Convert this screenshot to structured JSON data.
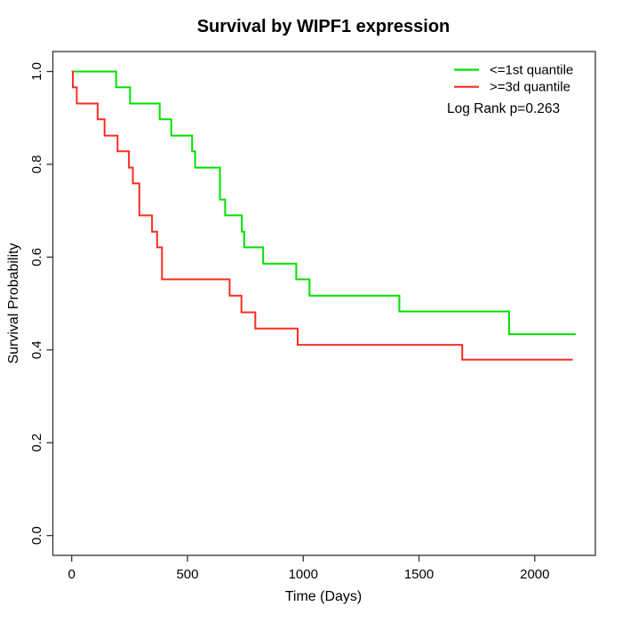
{
  "chart_data": {
    "type": "line",
    "variant": "kaplan-meier-step",
    "title": "Survival by WIPF1 expression",
    "xlabel": "Time (Days)",
    "ylabel": "Survival Probability",
    "x_ticks": [
      "0",
      "500",
      "1000",
      "1500",
      "2000"
    ],
    "y_ticks": [
      "0.0",
      "0.2",
      "0.4",
      "0.6",
      "0.8",
      "1.0"
    ],
    "xlim": [
      0,
      2260
    ],
    "ylim": [
      0,
      1.04
    ],
    "grid": false,
    "legend_position": "top-right",
    "annotation": "Log Rank p=0.263",
    "series": [
      {
        "name": "<=1st quantile",
        "color": "#00e000",
        "points": [
          [
            0,
            1.0
          ],
          [
            192,
            0.966
          ],
          [
            252,
            0.931
          ],
          [
            380,
            0.897
          ],
          [
            430,
            0.862
          ],
          [
            520,
            0.828
          ],
          [
            533,
            0.793
          ],
          [
            640,
            0.724
          ],
          [
            663,
            0.69
          ],
          [
            735,
            0.655
          ],
          [
            745,
            0.621
          ],
          [
            827,
            0.586
          ],
          [
            970,
            0.552
          ],
          [
            1027,
            0.517
          ],
          [
            1415,
            0.483
          ],
          [
            1889,
            0.434
          ],
          [
            2177,
            0.434
          ]
        ]
      },
      {
        "name": ">=3d quantile",
        "color": "#fa2d22",
        "points": [
          [
            0,
            1.0
          ],
          [
            5,
            0.966
          ],
          [
            22,
            0.931
          ],
          [
            112,
            0.897
          ],
          [
            142,
            0.862
          ],
          [
            198,
            0.828
          ],
          [
            247,
            0.793
          ],
          [
            264,
            0.759
          ],
          [
            292,
            0.69
          ],
          [
            347,
            0.655
          ],
          [
            369,
            0.621
          ],
          [
            390,
            0.552
          ],
          [
            682,
            0.517
          ],
          [
            733,
            0.481
          ],
          [
            793,
            0.446
          ],
          [
            976,
            0.411
          ],
          [
            1687,
            0.379
          ],
          [
            2164,
            0.379
          ]
        ]
      }
    ]
  }
}
